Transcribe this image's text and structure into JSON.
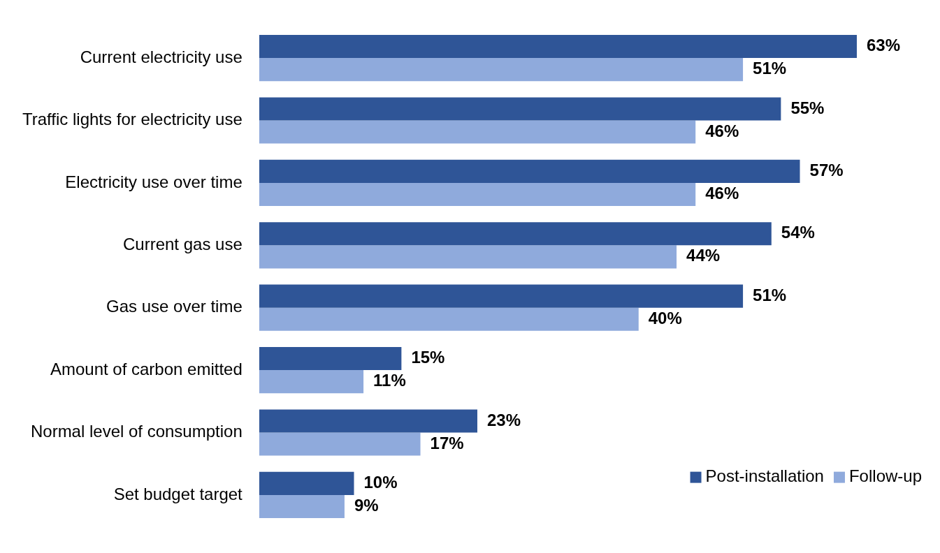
{
  "chart_data": {
    "type": "bar",
    "orientation": "horizontal",
    "categories": [
      "Current electricity use",
      "Traffic lights for electricity use",
      "Electricity use over time",
      "Current gas use",
      "Gas use over time",
      "Amount of carbon emitted",
      "Normal level of consumption",
      "Set budget target"
    ],
    "series": [
      {
        "name": "Post-installation",
        "color": "#2f5597",
        "values": [
          63,
          55,
          57,
          54,
          51,
          15,
          23,
          10
        ],
        "value_labels": [
          "63%",
          "55%",
          "57%",
          "54%",
          "51%",
          "15%",
          "23%",
          "10%"
        ]
      },
      {
        "name": "Follow-up",
        "color": "#8faadc",
        "values": [
          51,
          46,
          46,
          44,
          40,
          11,
          17,
          9
        ],
        "value_labels": [
          "51%",
          "46%",
          "46%",
          "44%",
          "40%",
          "11%",
          "17%",
          "9%"
        ]
      }
    ],
    "tick_labels": "y",
    "grid": false,
    "legend": "bottom right"
  }
}
